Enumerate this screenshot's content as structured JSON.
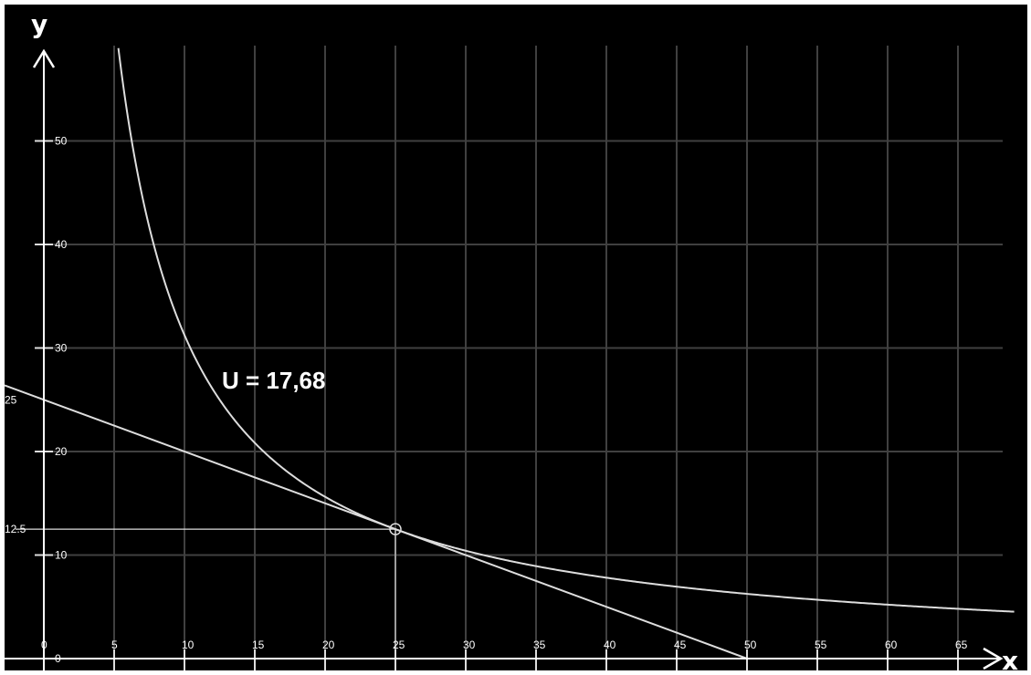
{
  "chart_data": {
    "type": "line",
    "xlabel": "x",
    "ylabel": "y",
    "xlim": [
      -2.5,
      69
    ],
    "ylim": [
      0,
      59
    ],
    "x_ticks": [
      "0",
      "5",
      "10",
      "15",
      "20",
      "25",
      "30",
      "35",
      "40",
      "45",
      "50",
      "55",
      "60",
      "65"
    ],
    "y_ticks": [
      "0",
      "10",
      "20",
      "30",
      "40",
      "50"
    ],
    "grid": true,
    "series": [
      {
        "kind": "indifference_curve",
        "formula": "x*y = 312.5",
        "k": 312.5,
        "x_range": [
          5.3,
          69
        ]
      },
      {
        "kind": "budget_line",
        "formula": "y = 25 - 0.5x",
        "points": [
          [
            0,
            25
          ],
          [
            50,
            0
          ]
        ]
      }
    ],
    "tangent_point": {
      "x": 25,
      "y": 12.5
    },
    "marked_values": {
      "y_intercept": "25",
      "y_at_tangent": "12.5",
      "x_at_tangent": "25"
    },
    "annotation": "U = 17,68",
    "colors": {
      "background": "#000000",
      "grid": "#404040",
      "lines": "#dddddd",
      "text": "#ffffff"
    }
  }
}
